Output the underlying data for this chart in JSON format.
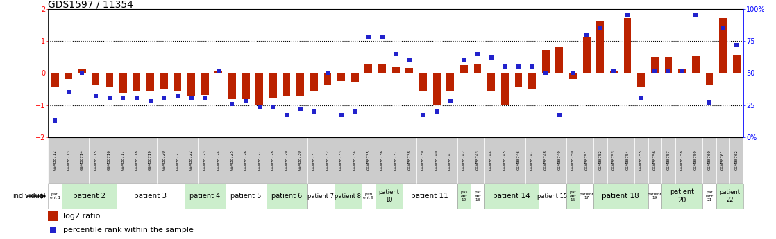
{
  "title": "GDS1597 / 11354",
  "gsm_labels": [
    "GSM38712",
    "GSM38713",
    "GSM38714",
    "GSM38715",
    "GSM38716",
    "GSM38717",
    "GSM38718",
    "GSM38719",
    "GSM38720",
    "GSM38721",
    "GSM38722",
    "GSM38723",
    "GSM38724",
    "GSM38725",
    "GSM38726",
    "GSM38727",
    "GSM38728",
    "GSM38729",
    "GSM38730",
    "GSM38731",
    "GSM38732",
    "GSM38733",
    "GSM38734",
    "GSM38735",
    "GSM38736",
    "GSM38737",
    "GSM38738",
    "GSM38739",
    "GSM38740",
    "GSM38741",
    "GSM38742",
    "GSM38743",
    "GSM38744",
    "GSM38745",
    "GSM38746",
    "GSM38747",
    "GSM38748",
    "GSM38749",
    "GSM38750",
    "GSM38751",
    "GSM38752",
    "GSM38753",
    "GSM38754",
    "GSM38755",
    "GSM38756",
    "GSM38757",
    "GSM38758",
    "GSM38759",
    "GSM38760",
    "GSM38761",
    "GSM38762"
  ],
  "log2_ratio": [
    -0.45,
    -0.18,
    0.12,
    -0.38,
    -0.42,
    -0.62,
    -0.58,
    -0.55,
    -0.48,
    -0.55,
    -0.7,
    -0.68,
    0.08,
    -0.82,
    -0.82,
    -1.02,
    -0.78,
    -0.72,
    -0.7,
    -0.55,
    -0.35,
    -0.25,
    -0.3,
    0.28,
    0.3,
    0.2,
    0.15,
    -0.55,
    -1.02,
    -0.55,
    0.25,
    0.28,
    -0.55,
    -1.02,
    -0.45,
    -0.52,
    0.72,
    0.82,
    -0.18,
    1.12,
    1.62,
    0.08,
    1.72,
    -0.42,
    0.5,
    0.48,
    0.12,
    0.52,
    -0.38,
    1.72,
    0.58
  ],
  "percentile": [
    13,
    35,
    50,
    32,
    30,
    30,
    30,
    28,
    30,
    32,
    30,
    30,
    52,
    26,
    28,
    23,
    23,
    17,
    22,
    20,
    50,
    17,
    20,
    78,
    78,
    65,
    60,
    17,
    20,
    28,
    60,
    65,
    62,
    55,
    55,
    55,
    50,
    17,
    50,
    80,
    85,
    52,
    95,
    30,
    52,
    52,
    52,
    95,
    27,
    85,
    72
  ],
  "patients": [
    {
      "label": "pati\nent 1",
      "start": 0,
      "end": 1,
      "color": "#ffffff"
    },
    {
      "label": "patient 2",
      "start": 1,
      "end": 5,
      "color": "#cceecc"
    },
    {
      "label": "patient 3",
      "start": 5,
      "end": 10,
      "color": "#ffffff"
    },
    {
      "label": "patient 4",
      "start": 10,
      "end": 13,
      "color": "#cceecc"
    },
    {
      "label": "patient 5",
      "start": 13,
      "end": 16,
      "color": "#ffffff"
    },
    {
      "label": "patient 6",
      "start": 16,
      "end": 19,
      "color": "#cceecc"
    },
    {
      "label": "patient 7",
      "start": 19,
      "end": 21,
      "color": "#ffffff"
    },
    {
      "label": "patient 8",
      "start": 21,
      "end": 23,
      "color": "#cceecc"
    },
    {
      "label": "pati\nent 9",
      "start": 23,
      "end": 24,
      "color": "#ffffff"
    },
    {
      "label": "patient\n10",
      "start": 24,
      "end": 26,
      "color": "#cceecc"
    },
    {
      "label": "patient 11",
      "start": 26,
      "end": 30,
      "color": "#ffffff"
    },
    {
      "label": "pas\nent\n12",
      "start": 30,
      "end": 31,
      "color": "#cceecc"
    },
    {
      "label": "pat\nent\n13",
      "start": 31,
      "end": 32,
      "color": "#ffffff"
    },
    {
      "label": "patient 14",
      "start": 32,
      "end": 36,
      "color": "#cceecc"
    },
    {
      "label": "patient 15",
      "start": 36,
      "end": 38,
      "color": "#ffffff"
    },
    {
      "label": "pat\nent\n16",
      "start": 38,
      "end": 39,
      "color": "#cceecc"
    },
    {
      "label": "patient\n17",
      "start": 39,
      "end": 40,
      "color": "#ffffff"
    },
    {
      "label": "patient 18",
      "start": 40,
      "end": 44,
      "color": "#cceecc"
    },
    {
      "label": "patient\n19",
      "start": 44,
      "end": 45,
      "color": "#ffffff"
    },
    {
      "label": "patient\n20",
      "start": 45,
      "end": 48,
      "color": "#cceecc"
    },
    {
      "label": "pat\nient\n21",
      "start": 48,
      "end": 49,
      "color": "#ffffff"
    },
    {
      "label": "patient\n22",
      "start": 49,
      "end": 51,
      "color": "#cceecc"
    }
  ],
  "ylim": [
    -2.0,
    2.0
  ],
  "yticks": [
    -2,
    -1,
    0,
    1,
    2
  ],
  "y2ticks": [
    0,
    25,
    50,
    75,
    100
  ],
  "y2ticklabels": [
    "0%",
    "25",
    "50",
    "75",
    "100%"
  ],
  "bar_color": "#bb2200",
  "scatter_color": "#2222cc",
  "gsm_cell_color": "#cccccc",
  "title_fontsize": 10,
  "tick_fontsize": 7,
  "legend_fontsize": 8
}
